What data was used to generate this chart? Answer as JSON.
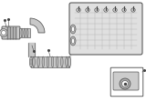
{
  "bg_color": "#ffffff",
  "line_color": "#444444",
  "mid_gray": "#aaaaaa",
  "light_gray": "#cccccc",
  "lighter_gray": "#e0e0e0",
  "dark_gray": "#777777",
  "white": "#ffffff",
  "housing_fill": "#d8d8d8",
  "pipe_fill": "#bbbbbb",
  "pipe_fill2": "#c8c8c8"
}
